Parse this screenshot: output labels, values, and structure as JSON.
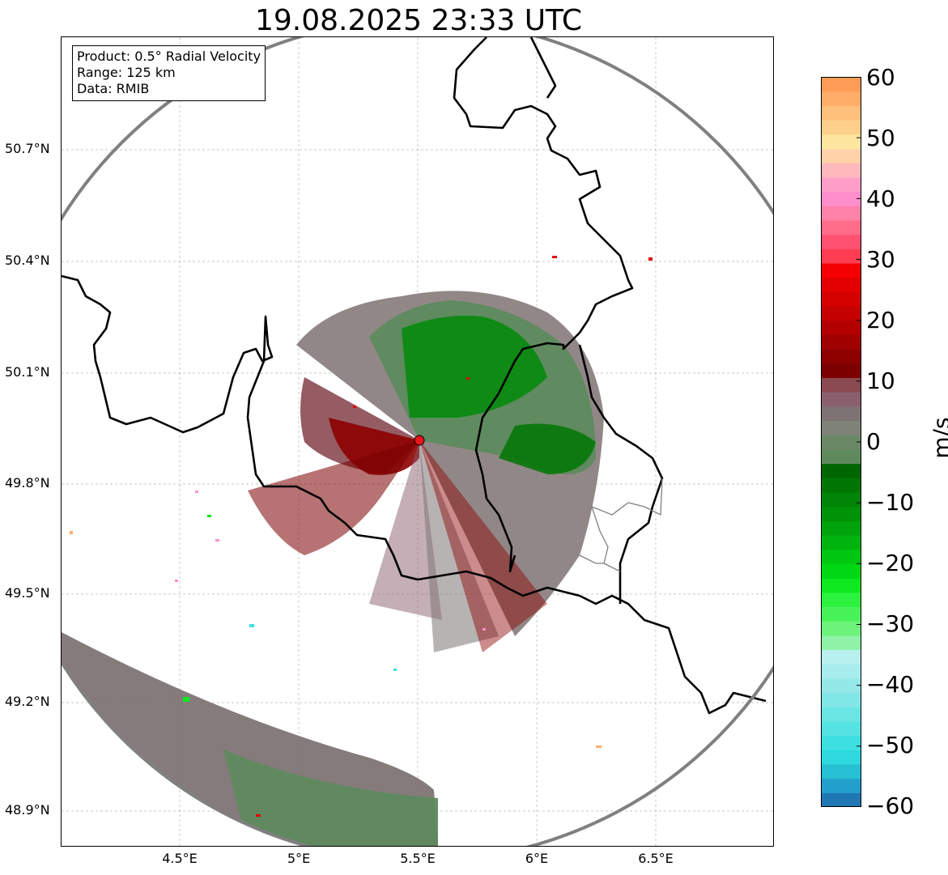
{
  "title": "19.08.2025 23:33 UTC",
  "info_box": {
    "product": "Product: 0.5° Radial Velocity",
    "range": "Range: 125 km",
    "source": "Data: RMIB"
  },
  "axes": {
    "lat_labels": [
      "50.7°N",
      "50.4°N",
      "50.1°N",
      "49.8°N",
      "49.5°N",
      "49.2°N",
      "48.9°N"
    ],
    "lon_labels": [
      "4.5°E",
      "5°E",
      "5.5°E",
      "6°E",
      "6.5°E"
    ],
    "grid": true
  },
  "radar_site": {
    "color": "#e8141b"
  },
  "colorbar": {
    "unit": "m/s",
    "ticks": [
      "60",
      "50",
      "40",
      "30",
      "20",
      "10",
      "0",
      "−10",
      "−20",
      "−30",
      "−40",
      "−50",
      "−60"
    ],
    "range": [
      -60,
      60
    ],
    "colors": [
      "#1f77b4",
      "#229fcc",
      "#26bfd4",
      "#2dd9df",
      "#3edfe0",
      "#55e2e3",
      "#6be4e4",
      "#80e6e6",
      "#94e8e8",
      "#a8ecee",
      "#b8f0ef",
      "#8ef3a6",
      "#6df27a",
      "#4af25a",
      "#2cf23f",
      "#0de81f",
      "#00d814",
      "#00c711",
      "#00b40e",
      "#00a30b",
      "#009308",
      "#008406",
      "#007504",
      "#006602",
      "#5e8a5e",
      "#6a8866",
      "#7e8278",
      "#7e7474",
      "#8a6070",
      "#8a4a52",
      "#7b0000",
      "#8c0000",
      "#a00000",
      "#b20000",
      "#c40000",
      "#d40000",
      "#e40000",
      "#f50000",
      "#ff3c50",
      "#ff5272",
      "#ff6c8a",
      "#ff82a8",
      "#ff8fcc",
      "#ff9fc8",
      "#ffb8bc",
      "#ffd2a8",
      "#ffe6a0",
      "#ffd08c",
      "#ffc07c",
      "#ffae6a",
      "#ff9c58"
    ]
  }
}
